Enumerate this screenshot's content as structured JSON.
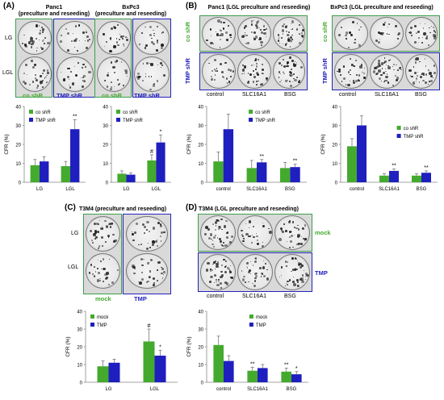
{
  "colors": {
    "green": "#44aa2e",
    "blue": "#1f1fbf",
    "green_box": "#3aa04a",
    "blue_box": "#2323b8"
  },
  "panelA": {
    "label": "(A)",
    "panc_title_1": "Panc1",
    "panc_title_2": "(preculture and reseeding)",
    "bx_title_1": "BxPc3",
    "bx_title_2": "(preculture and reseeding)",
    "row_lg": "LG",
    "row_lgl": "LGL",
    "co": "co shR",
    "tmp": "TMP shR"
  },
  "panelB": {
    "label": "(B)",
    "panc_title": "Panc1 (LGL preculture and reseeding)",
    "bx_title": "BxPc3 (LGL preculture and reseeding)",
    "co": "co shR",
    "tmp": "TMP shR",
    "cols": [
      "control",
      "SLC16A1",
      "BSG"
    ]
  },
  "panelC": {
    "label": "(C)",
    "title": "T3M4 (preculture and reseeding)",
    "row_lg": "LG",
    "row_lgl": "LGL",
    "mock": "mock",
    "tmp": "TMP"
  },
  "panelD": {
    "label": "(D)",
    "title": "T3M4 (LGL preculture and reseeding)",
    "mock": "mock",
    "tmp": "TMP",
    "cols": [
      "control",
      "SLC16A1",
      "BSG"
    ]
  },
  "chart_data": [
    {
      "id": "A1",
      "type": "bar",
      "ylabel": "CFR (%)",
      "ylim": [
        0,
        40
      ],
      "yticks": [
        0,
        10,
        20,
        30,
        40
      ],
      "categories": [
        "LG",
        "LGL"
      ],
      "series": [
        {
          "name": "co shR",
          "values": [
            9,
            8.5
          ],
          "err": [
            3,
            2.5
          ],
          "marks": [
            "",
            ""
          ]
        },
        {
          "name": "TMP shR",
          "values": [
            11,
            28
          ],
          "err": [
            2.5,
            5
          ],
          "marks": [
            "",
            "**"
          ]
        }
      ],
      "legend": "top-left"
    },
    {
      "id": "A2",
      "type": "bar",
      "ylabel": "",
      "ylim": [
        0,
        40
      ],
      "yticks": [
        0,
        10,
        20,
        30,
        40
      ],
      "categories": [
        "LG",
        "LGL"
      ],
      "series": [
        {
          "name": "co shR",
          "values": [
            4.5,
            11.5
          ],
          "err": [
            1.5,
            3
          ],
          "marks": [
            "",
            "#"
          ]
        },
        {
          "name": "TMP shR",
          "values": [
            4,
            21
          ],
          "err": [
            1,
            4
          ],
          "marks": [
            "",
            "*"
          ]
        }
      ],
      "legend": "top-left"
    },
    {
      "id": "B1",
      "type": "bar",
      "ylabel": "CFR (%)",
      "ylim": [
        0,
        40
      ],
      "yticks": [
        0,
        10,
        20,
        30,
        40
      ],
      "categories": [
        "control",
        "SLC16A1",
        "BSG"
      ],
      "series": [
        {
          "name": "co shR",
          "values": [
            11,
            7.5,
            7.5
          ],
          "err": [
            5,
            4,
            3
          ],
          "marks": [
            "",
            "",
            ""
          ]
        },
        {
          "name": "TMP shR",
          "values": [
            28,
            10.5,
            8
          ],
          "err": [
            8,
            1.5,
            1.5
          ],
          "marks": [
            "",
            "**",
            "**"
          ]
        }
      ],
      "legend": "top-center"
    },
    {
      "id": "B2",
      "type": "bar",
      "ylabel": "CFR (%)",
      "ylim": [
        0,
        40
      ],
      "yticks": [
        0,
        10,
        20,
        30,
        40
      ],
      "categories": [
        "control",
        "SLC16A1",
        "BSG"
      ],
      "series": [
        {
          "name": "co shR",
          "values": [
            19,
            3.5,
            3.5
          ],
          "err": [
            4,
            1,
            1
          ],
          "marks": [
            "",
            "",
            ""
          ]
        },
        {
          "name": "TMP shR",
          "values": [
            30,
            6,
            5
          ],
          "err": [
            5,
            1,
            1
          ],
          "marks": [
            "",
            "**",
            "**"
          ]
        }
      ],
      "legend": "top-right"
    },
    {
      "id": "C1",
      "type": "bar",
      "ylabel": "CFR (%)",
      "ylim": [
        0,
        40
      ],
      "yticks": [
        0,
        10,
        20,
        30,
        40
      ],
      "categories": [
        "LG",
        "LGL"
      ],
      "series": [
        {
          "name": "mock",
          "values": [
            9,
            23
          ],
          "err": [
            3,
            7
          ],
          "marks": [
            "",
            "#"
          ]
        },
        {
          "name": "TMP",
          "values": [
            11,
            15
          ],
          "err": [
            2,
            3
          ],
          "marks": [
            "",
            "*"
          ]
        }
      ],
      "legend": "top-left"
    },
    {
      "id": "D1",
      "type": "bar",
      "ylabel": "CFR (%)",
      "ylim": [
        0,
        40
      ],
      "yticks": [
        0,
        10,
        20,
        30,
        40
      ],
      "categories": [
        "control",
        "SLC16A1",
        "BSG"
      ],
      "series": [
        {
          "name": "mock",
          "values": [
            21,
            6.5,
            6
          ],
          "err": [
            5,
            2,
            2
          ],
          "marks": [
            "",
            "**",
            "**"
          ]
        },
        {
          "name": "TMP",
          "values": [
            12,
            8,
            4.5
          ],
          "err": [
            3,
            2,
            1.5
          ],
          "marks": [
            "",
            "",
            "*"
          ]
        }
      ],
      "legend": "top-center"
    }
  ]
}
